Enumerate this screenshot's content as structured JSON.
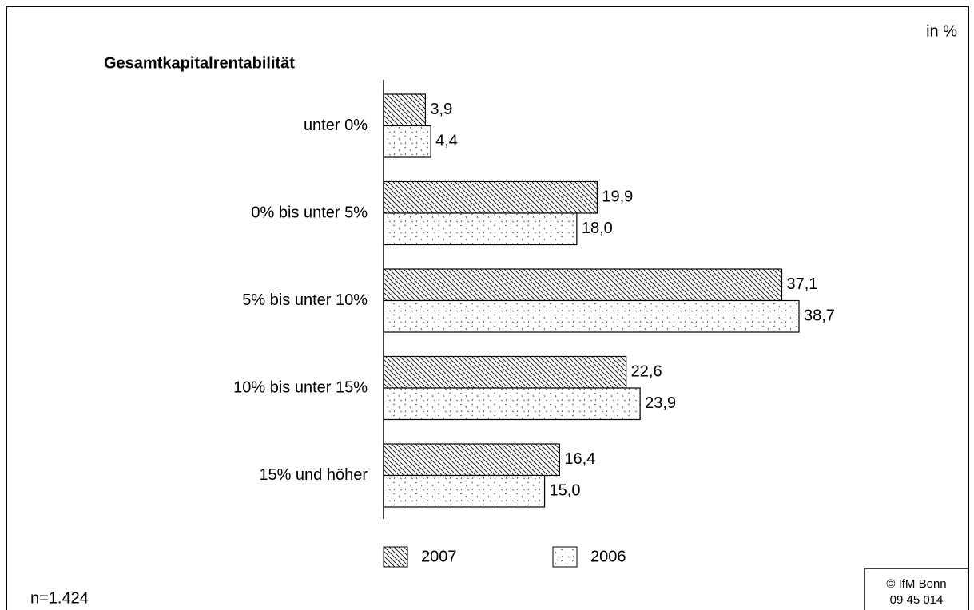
{
  "chart_data": {
    "type": "bar",
    "orientation": "horizontal",
    "title": "Gesamtkapitalrentabilität",
    "unit_note": "in %",
    "sample_note": "n=1.424",
    "source": [
      "© IfM Bonn",
      "09 45 014"
    ],
    "categories": [
      "unter 0%",
      "0% bis unter 5%",
      "5% bis unter 10%",
      "10% bis unter 15%",
      "15% und höher"
    ],
    "series": [
      {
        "name": "2007",
        "color": "#000000",
        "pattern": "hatch",
        "values": [
          3.9,
          19.9,
          37.1,
          22.6,
          16.4
        ],
        "value_labels": [
          "3,9",
          "19,9",
          "37,1",
          "22,6",
          "16,4"
        ]
      },
      {
        "name": "2006",
        "color": "#000000",
        "pattern": "dots",
        "values": [
          4.4,
          18.0,
          38.7,
          23.9,
          15.0
        ],
        "value_labels": [
          "4,4",
          "18,0",
          "38,7",
          "23,9",
          "15,0"
        ]
      }
    ],
    "legend": "bottom"
  }
}
